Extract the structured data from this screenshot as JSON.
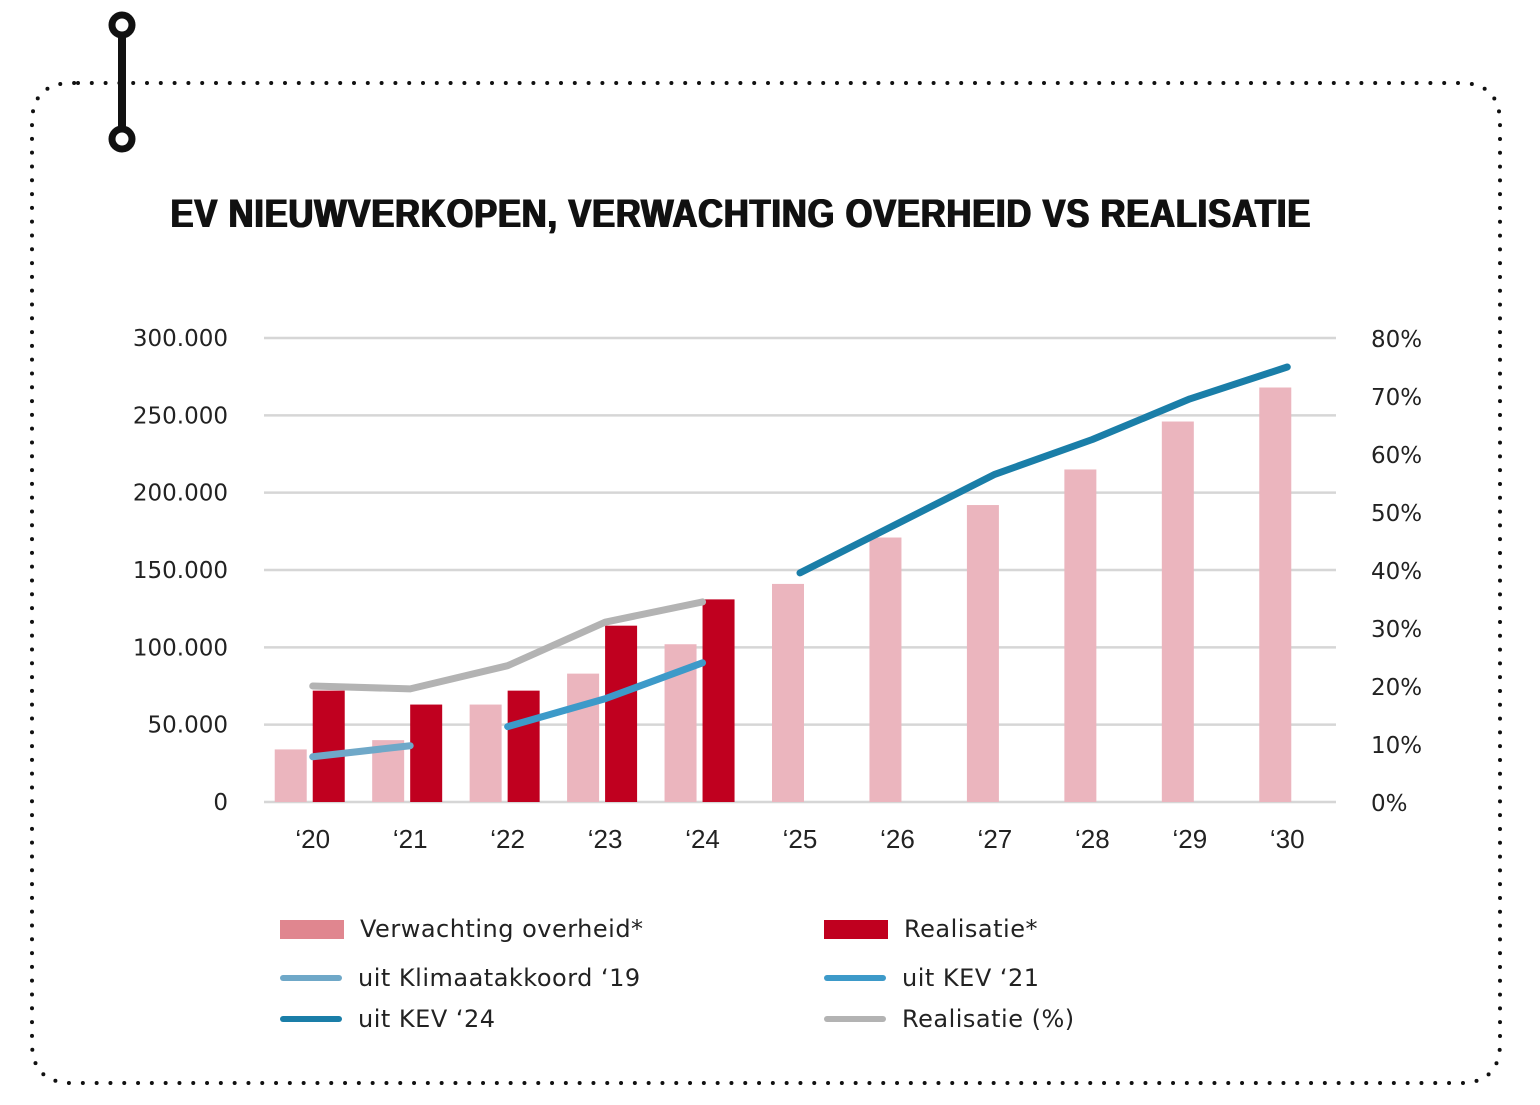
{
  "chart_data": {
    "type": "bar",
    "title": "EV NIEUWVERKOPEN, VERWACHTING OVERHEID VS REALISATIE",
    "xlabel": "",
    "ylabel": "",
    "categories": [
      "‘20",
      "‘21",
      "‘22",
      "‘23",
      "‘24",
      "‘25",
      "‘26",
      "‘27",
      "‘28",
      "‘29",
      "‘30"
    ],
    "y_left": {
      "range": [
        0,
        300000
      ],
      "ticks": [
        0,
        50000,
        100000,
        150000,
        200000,
        250000,
        300000
      ],
      "tick_labels": [
        "0",
        "50.000",
        "100.000",
        "150.000",
        "200.000",
        "250.000",
        "300.000"
      ]
    },
    "y_right": {
      "range": [
        0,
        80
      ],
      "ticks": [
        0,
        10,
        20,
        30,
        40,
        50,
        60,
        70,
        80
      ],
      "tick_labels": [
        "0%",
        "10%",
        "20%",
        "30%",
        "40%",
        "50%",
        "60%",
        "70%",
        "80%"
      ]
    },
    "grid": true,
    "legend_position": "bottom",
    "series": [
      {
        "name": "Verwachting overheid*",
        "kind": "bar",
        "axis": "left",
        "color": "#ebb5be",
        "legend_color": "#e0868f",
        "values": [
          34000,
          40000,
          63000,
          83000,
          102000,
          141000,
          171000,
          192000,
          215000,
          246000,
          268000
        ]
      },
      {
        "name": "Realisatie*",
        "kind": "bar",
        "axis": "left",
        "color": "#c0001f",
        "values": [
          72000,
          63000,
          72000,
          114000,
          131000,
          null,
          null,
          null,
          null,
          null,
          null
        ]
      },
      {
        "name": "uit Klimaatakkoord ‘19",
        "kind": "line",
        "axis": "right",
        "color": "#6fa8c8",
        "values": [
          7.8,
          9.7,
          null,
          null,
          null,
          null,
          null,
          null,
          null,
          null,
          null
        ]
      },
      {
        "name": "uit KEV ‘21",
        "kind": "line",
        "axis": "right",
        "color": "#3d9ac9",
        "values": [
          null,
          null,
          13.0,
          17.8,
          24.0,
          null,
          null,
          null,
          null,
          null,
          null
        ]
      },
      {
        "name": "uit KEV ‘24",
        "kind": "line",
        "axis": "right",
        "color": "#1a7ea8",
        "values": [
          null,
          null,
          null,
          null,
          null,
          39.5,
          48.0,
          56.5,
          62.5,
          69.5,
          75.0
        ]
      },
      {
        "name": "Realisatie (%)",
        "kind": "line",
        "axis": "right",
        "color": "#b3b3b3",
        "values": [
          20.0,
          19.5,
          23.5,
          31.0,
          34.5,
          null,
          null,
          null,
          null,
          null,
          null
        ]
      }
    ]
  }
}
